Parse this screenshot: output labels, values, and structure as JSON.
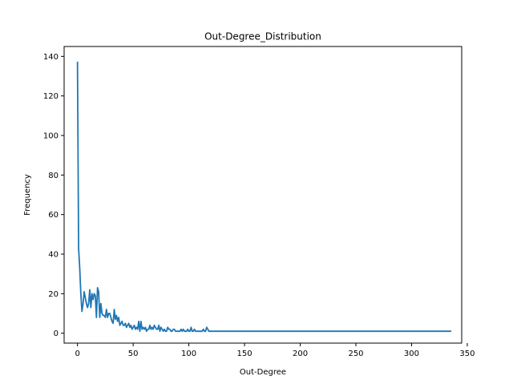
{
  "chart_data": {
    "type": "line",
    "title": "Out-Degree_Distribution",
    "xlabel": "Out-Degree",
    "ylabel": "Frequency",
    "xlim": [
      -12,
      345
    ],
    "ylim": [
      -5,
      145
    ],
    "xticks": [
      0,
      50,
      100,
      150,
      200,
      250,
      300,
      350
    ],
    "yticks": [
      0,
      20,
      40,
      60,
      80,
      100,
      120,
      140
    ],
    "grid": false,
    "colors": {
      "line": "#1f77b4",
      "axis": "#000000",
      "background": "#ffffff"
    },
    "series": [
      {
        "x": [
          0,
          1,
          2,
          3,
          4,
          5,
          6,
          7,
          8,
          9,
          10,
          11,
          12,
          13,
          14,
          15,
          16,
          17,
          18,
          19,
          20,
          21,
          22,
          23,
          24,
          25,
          26,
          27,
          28,
          29,
          30,
          31,
          32,
          33,
          34,
          35,
          36,
          37,
          38,
          39,
          40,
          41,
          42,
          43,
          44,
          45,
          46,
          47,
          48,
          49,
          50,
          51,
          52,
          53,
          54,
          55,
          56,
          57,
          58,
          59,
          60,
          61,
          62,
          63,
          64,
          65,
          66,
          67,
          68,
          69,
          70,
          71,
          72,
          73,
          74,
          75,
          76,
          77,
          78,
          79,
          80,
          81,
          82,
          83,
          84,
          85,
          86,
          87,
          88,
          89,
          90,
          91,
          92,
          93,
          94,
          95,
          96,
          97,
          98,
          99,
          100,
          101,
          102,
          103,
          104,
          105,
          106,
          107,
          108,
          109,
          110,
          111,
          112,
          113,
          114,
          115,
          116,
          117,
          118,
          119,
          120,
          121,
          122,
          123,
          124,
          125,
          126,
          127,
          128,
          335
        ],
        "y": [
          137,
          43,
          33,
          20,
          11,
          15,
          21,
          18,
          15,
          13,
          15,
          22,
          13,
          20,
          17,
          20,
          19,
          8,
          23,
          21,
          8,
          15,
          10,
          9,
          9,
          8,
          12,
          8,
          10,
          10,
          8,
          6,
          5,
          12,
          7,
          9,
          6,
          8,
          4,
          5,
          6,
          4,
          4,
          5,
          3,
          4,
          5,
          3,
          4,
          2,
          3,
          4,
          2,
          3,
          2,
          6,
          1,
          6,
          2,
          3,
          2,
          3,
          1,
          2,
          2,
          4,
          2,
          3,
          2,
          4,
          3,
          2,
          2,
          4,
          1,
          3,
          2,
          1,
          2,
          1,
          1,
          3,
          2,
          2,
          1,
          1,
          2,
          2,
          1,
          1,
          1,
          1,
          1,
          2,
          1,
          2,
          1,
          1,
          1,
          2,
          1,
          1,
          3,
          1,
          1,
          2,
          1,
          1,
          1,
          1,
          1,
          1,
          1,
          2,
          1,
          1,
          3,
          2,
          1,
          1,
          1,
          1,
          1,
          1,
          1,
          1,
          1,
          1,
          1,
          1
        ]
      }
    ]
  }
}
